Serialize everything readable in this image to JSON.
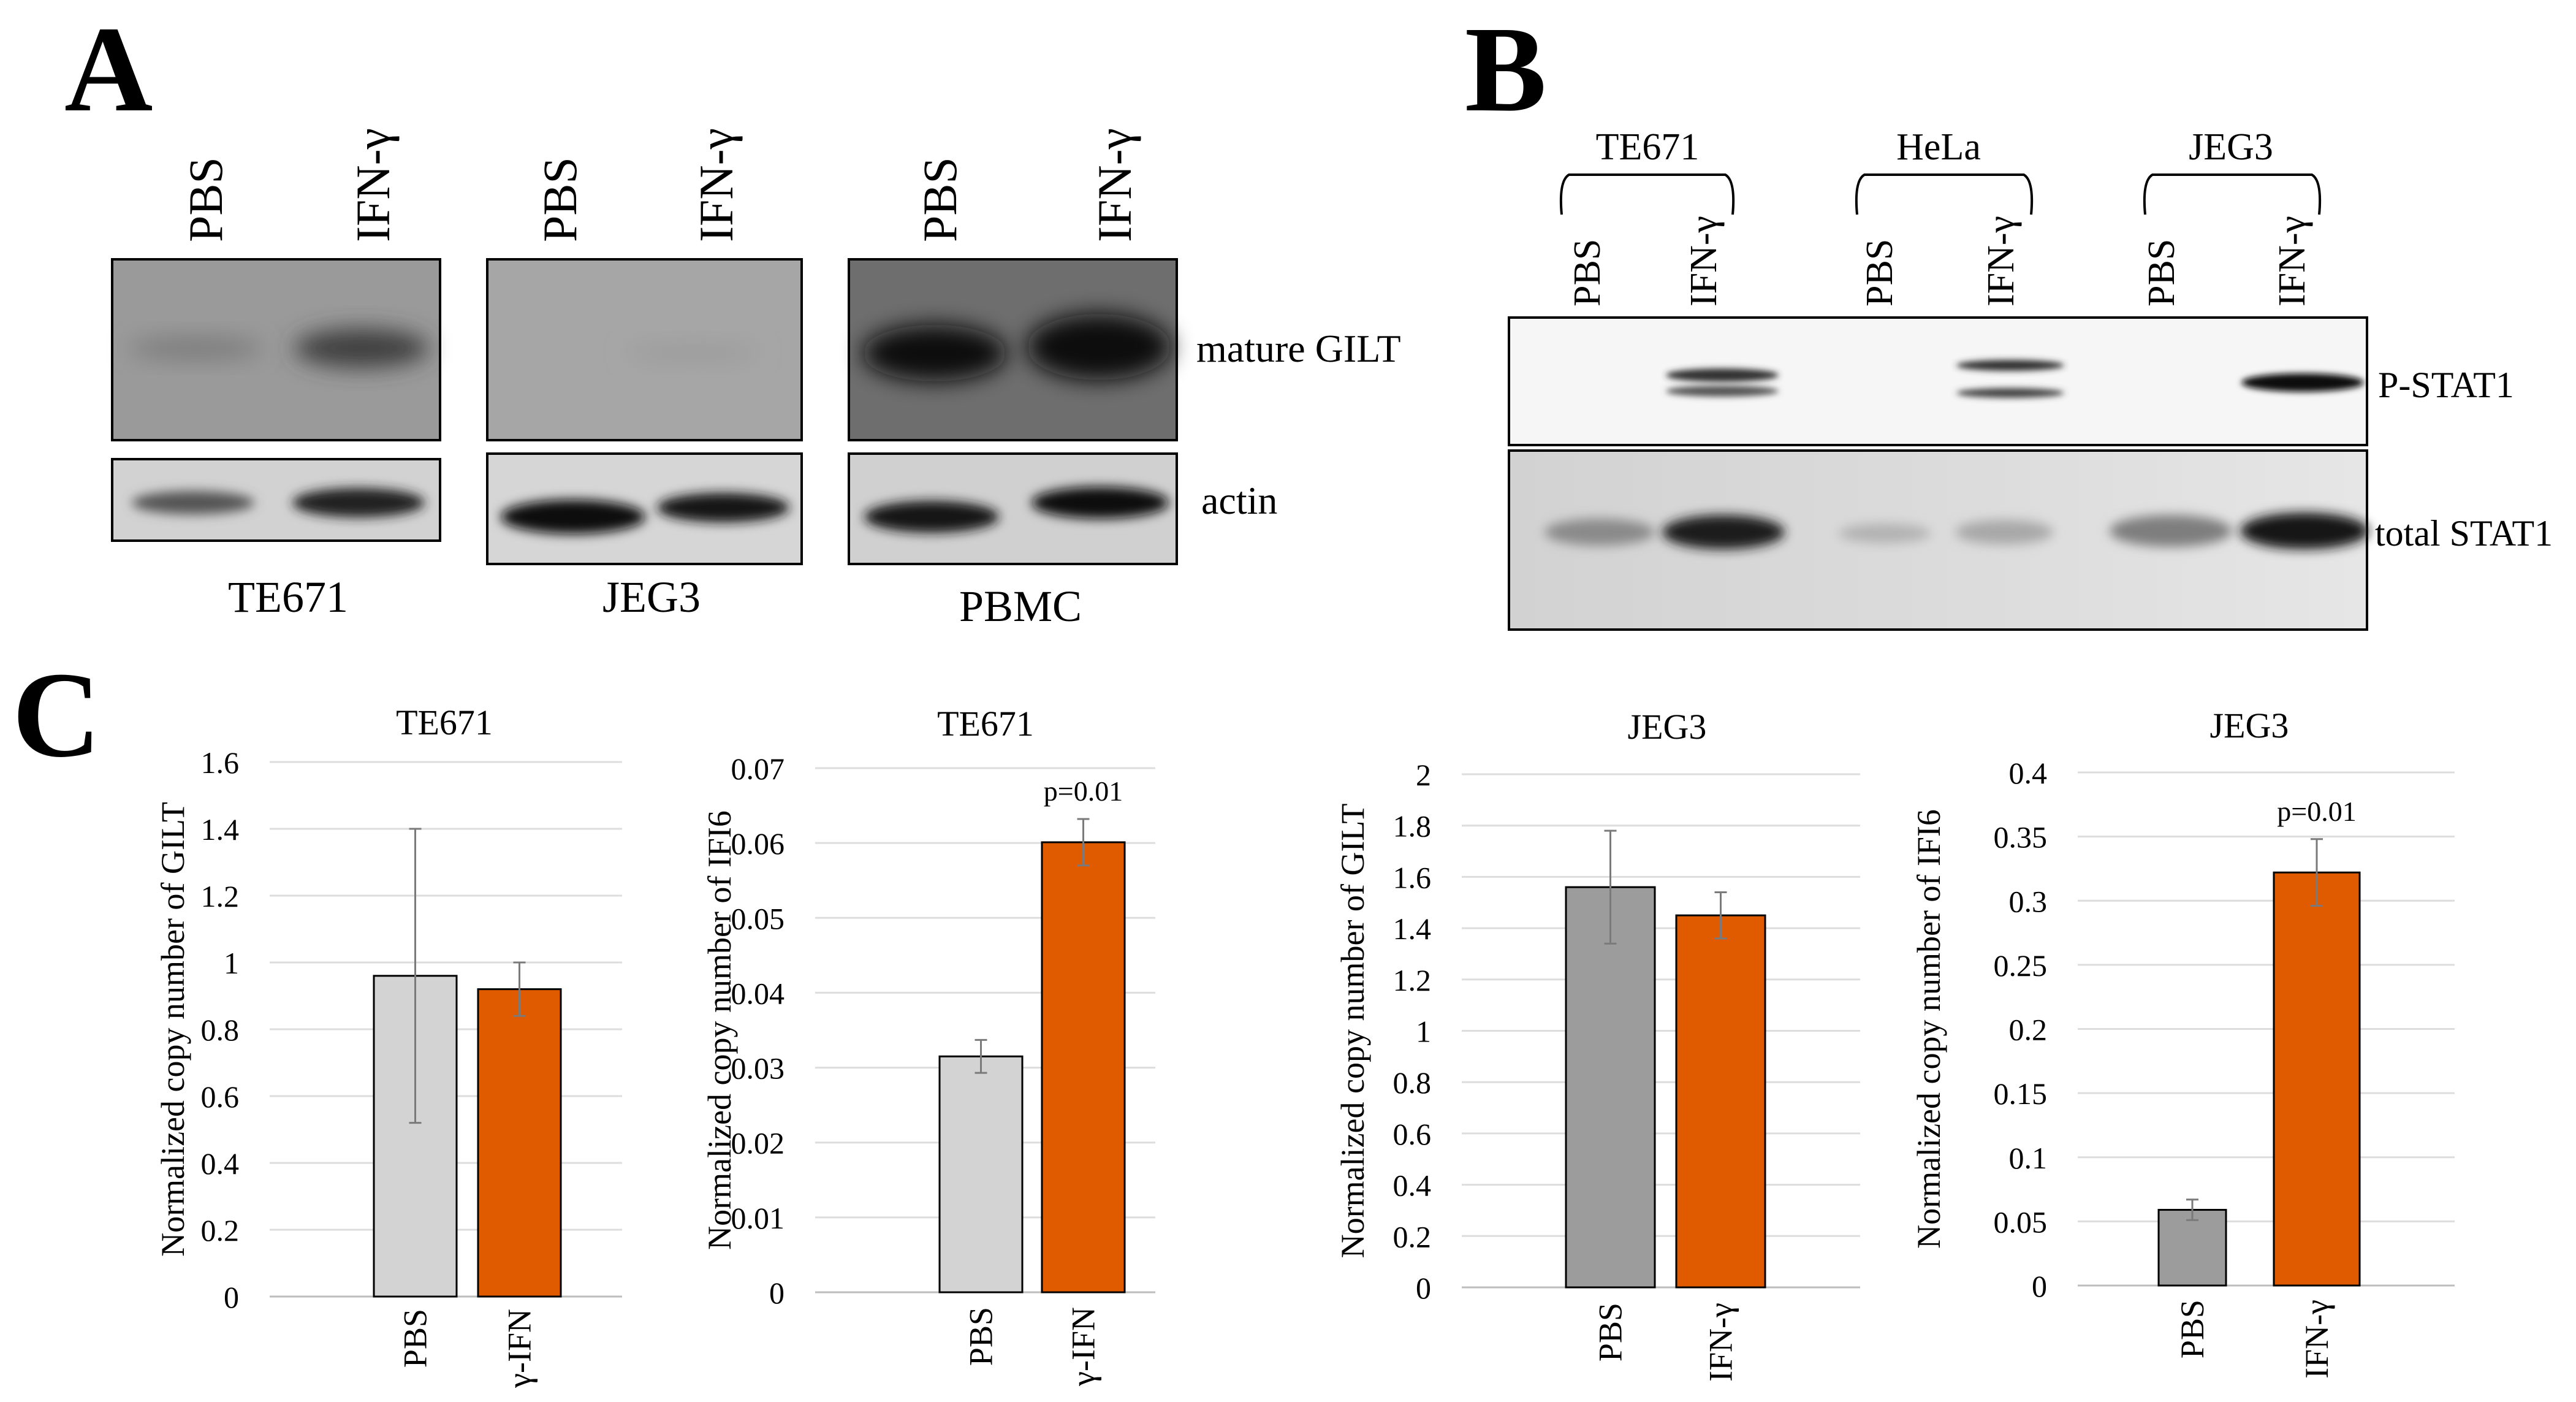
{
  "panels": {
    "A": {
      "letter": "A",
      "blots": [
        {
          "cell": "TE671",
          "lanes": [
            "PBS",
            "IFN-γ"
          ]
        },
        {
          "cell": "JEG3",
          "lanes": [
            "PBS",
            "IFN-γ"
          ]
        },
        {
          "cell": "PBMC",
          "lanes": [
            "PBS",
            "IFN-γ"
          ]
        }
      ],
      "row_labels": [
        "mature GILT",
        "actin"
      ]
    },
    "B": {
      "letter": "B",
      "groups": [
        {
          "cell": "TE671",
          "lanes": [
            "PBS",
            "IFN-γ"
          ]
        },
        {
          "cell": "HeLa",
          "lanes": [
            "PBS",
            "IFN-γ"
          ]
        },
        {
          "cell": "JEG3",
          "lanes": [
            "PBS",
            "IFN-γ"
          ]
        }
      ],
      "row_labels": [
        "P-STAT1",
        "total STAT1"
      ]
    },
    "C": {
      "letter": "C"
    }
  },
  "chart_data": [
    {
      "type": "bar",
      "title": "TE671",
      "ylabel": "Normalized copy number of GILT",
      "categories": [
        "PBS",
        "γ-IFN"
      ],
      "values": [
        0.96,
        0.92
      ],
      "errors": [
        0.44,
        0.08
      ],
      "ylim": [
        0,
        1.6
      ],
      "yticks": [
        0,
        0.2,
        0.4,
        0.6,
        0.8,
        1,
        1.2,
        1.4,
        1.6
      ],
      "ytick_labels": [
        "0",
        "0.2",
        "0.4",
        "0.6",
        "0.8",
        "1",
        "1.2",
        "1.4",
        "1.6"
      ],
      "colors": [
        "#d3d3d3",
        "#e05a00"
      ],
      "annotation": ""
    },
    {
      "type": "bar",
      "title": "TE671",
      "ylabel": "Normalized copy number of IFI6",
      "categories": [
        "PBS",
        "γ-IFN"
      ],
      "values": [
        0.0315,
        0.0601
      ],
      "errors": [
        0.0022,
        0.0031
      ],
      "ylim": [
        0,
        0.07
      ],
      "yticks": [
        0,
        0.01,
        0.02,
        0.03,
        0.04,
        0.05,
        0.06,
        0.07
      ],
      "ytick_labels": [
        "0",
        "0.01",
        "0.02",
        "0.03",
        "0.04",
        "0.05",
        "0.06",
        "0.07"
      ],
      "colors": [
        "#d3d3d3",
        "#e05a00"
      ],
      "annotation": "p=0.01"
    },
    {
      "type": "bar",
      "title": "JEG3",
      "ylabel": "Normalized copy number of GILT",
      "categories": [
        "PBS",
        "IFN-γ"
      ],
      "values": [
        1.56,
        1.45
      ],
      "errors": [
        0.22,
        0.09
      ],
      "ylim": [
        0,
        2
      ],
      "yticks": [
        0,
        0.2,
        0.4,
        0.6,
        0.8,
        1,
        1.2,
        1.4,
        1.6,
        1.8,
        2
      ],
      "ytick_labels": [
        "0",
        "0.2",
        "0.4",
        "0.6",
        "0.8",
        "1",
        "1.2",
        "1.4",
        "1.6",
        "1.8",
        "2"
      ],
      "colors": [
        "#9c9c9c",
        "#e05a00"
      ],
      "annotation": ""
    },
    {
      "type": "bar",
      "title": "JEG3",
      "ylabel": "Normalized copy number of IFI6",
      "categories": [
        "PBS",
        "IFN-γ"
      ],
      "values": [
        0.059,
        0.322
      ],
      "errors": [
        0.008,
        0.026
      ],
      "ylim": [
        0,
        0.4
      ],
      "yticks": [
        0,
        0.05,
        0.1,
        0.15,
        0.2,
        0.25,
        0.3,
        0.35,
        0.4
      ],
      "ytick_labels": [
        "0",
        "0.05",
        "0.1",
        "0.15",
        "0.2",
        "0.25",
        "0.3",
        "0.35",
        "0.4"
      ],
      "colors": [
        "#9c9c9c",
        "#e05a00"
      ],
      "annotation": "p=0.01"
    }
  ]
}
